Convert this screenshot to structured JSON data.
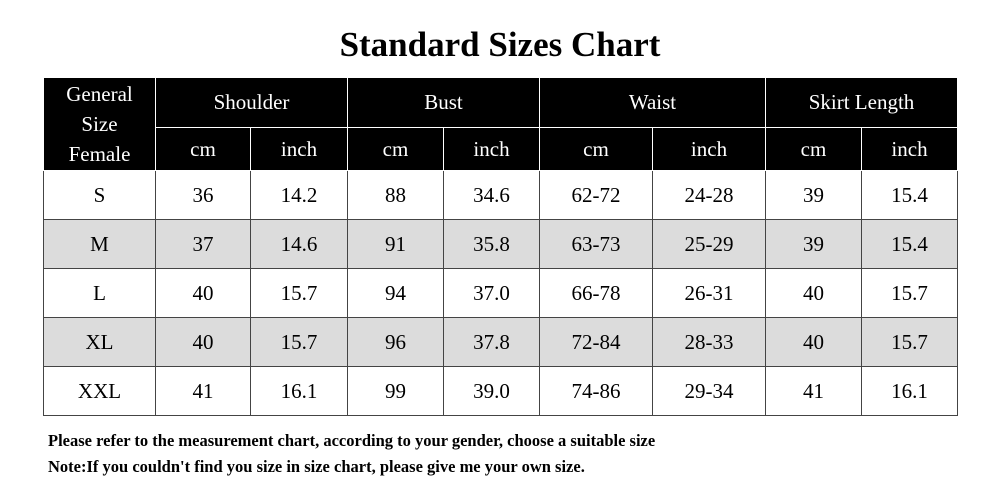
{
  "header": {
    "title": "Standard Sizes Chart"
  },
  "table": {
    "corner": [
      "General",
      "Size",
      "Female"
    ],
    "groups": [
      "Shoulder",
      "Bust",
      "Waist",
      "Skirt Length"
    ],
    "units": [
      "cm",
      "inch",
      "cm",
      "inch",
      "cm",
      "inch",
      "cm",
      "inch"
    ],
    "rows": [
      [
        "S",
        "36",
        "14.2",
        "88",
        "34.6",
        "62-72",
        "24-28",
        "39",
        "15.4"
      ],
      [
        "M",
        "37",
        "14.6",
        "91",
        "35.8",
        "63-73",
        "25-29",
        "39",
        "15.4"
      ],
      [
        "L",
        "40",
        "15.7",
        "94",
        "37.0",
        "66-78",
        "26-31",
        "40",
        "15.7"
      ],
      [
        "XL",
        "40",
        "15.7",
        "96",
        "37.8",
        "72-84",
        "28-33",
        "40",
        "15.7"
      ],
      [
        "XXL",
        "41",
        "16.1",
        "99",
        "39.0",
        "74-86",
        "29-34",
        "41",
        "16.1"
      ]
    ]
  },
  "notes": [
    "Please refer to the measurement chart, according to your gender, choose a suitable size",
    "Note:If you couldn't find you size in size chart, please give me your own size."
  ]
}
